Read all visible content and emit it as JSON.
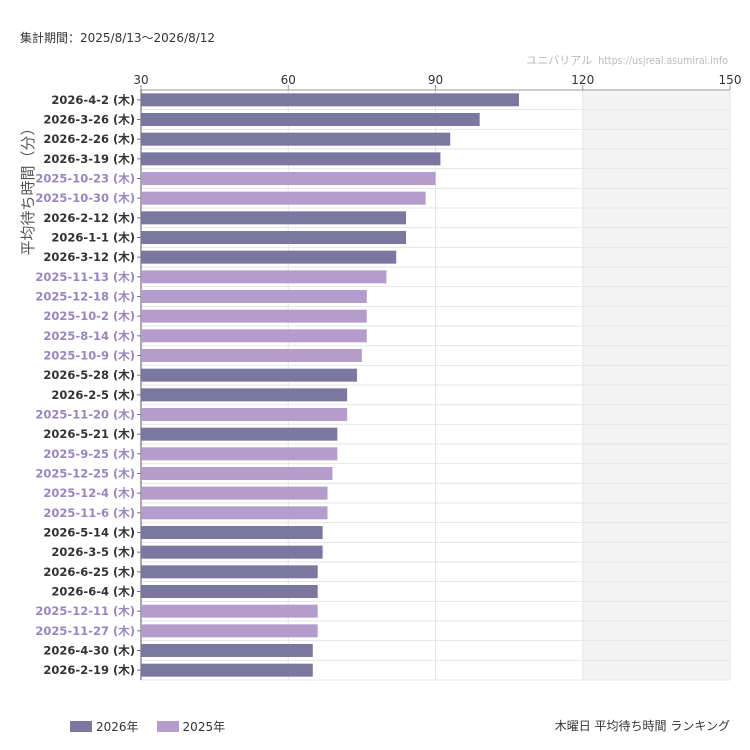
{
  "header": {
    "period": "集計期間：2025/8/13〜2026/8/12",
    "credit_site": "ユニバリアル",
    "credit_url": "https://usjreal.asumirai.info"
  },
  "caption": "木曜日 平均待ち時間 ランキング",
  "colors": {
    "2026": "#7b77a1",
    "2025": "#b49ccd",
    "label_2026": "#333333",
    "label_2025": "#9a86bd",
    "shade": "#f4f4f4",
    "grid": "#e6e6e6"
  },
  "chart_data": {
    "type": "bar",
    "orientation": "horizontal",
    "ylabel": "平均待ち時間（分）",
    "xlim": [
      30,
      150
    ],
    "ticks": [
      30,
      60,
      90,
      120,
      150
    ],
    "shaded_range": [
      120,
      150
    ],
    "grid": true,
    "legend_position": "bottom-left",
    "series": [
      {
        "name": "2026年",
        "key": "2026"
      },
      {
        "name": "2025年",
        "key": "2025"
      }
    ],
    "categories": [
      "2026-4-2 (木)",
      "2026-3-26 (木)",
      "2026-2-26 (木)",
      "2026-3-19 (木)",
      "2025-10-23 (木)",
      "2025-10-30 (木)",
      "2026-2-12 (木)",
      "2026-1-1 (木)",
      "2026-3-12 (木)",
      "2025-11-13 (木)",
      "2025-12-18 (木)",
      "2025-10-2 (木)",
      "2025-8-14 (木)",
      "2025-10-9 (木)",
      "2026-5-28 (木)",
      "2026-2-5 (木)",
      "2025-11-20 (木)",
      "2026-5-21 (木)",
      "2025-9-25 (木)",
      "2025-12-25 (木)",
      "2025-12-4 (木)",
      "2025-11-6 (木)",
      "2026-5-14 (木)",
      "2026-3-5 (木)",
      "2026-6-25 (木)",
      "2026-6-4 (木)",
      "2025-12-11 (木)",
      "2025-11-27 (木)",
      "2026-4-30 (木)",
      "2026-2-19 (木)"
    ],
    "values": [
      107,
      99,
      93,
      91,
      90,
      88,
      84,
      84,
      82,
      80,
      76,
      76,
      76,
      75,
      74,
      72,
      72,
      70,
      70,
      69,
      68,
      68,
      67,
      67,
      66,
      66,
      66,
      66,
      65,
      65
    ],
    "groups": [
      "2026",
      "2026",
      "2026",
      "2026",
      "2025",
      "2025",
      "2026",
      "2026",
      "2026",
      "2025",
      "2025",
      "2025",
      "2025",
      "2025",
      "2026",
      "2026",
      "2025",
      "2026",
      "2025",
      "2025",
      "2025",
      "2025",
      "2026",
      "2026",
      "2026",
      "2026",
      "2025",
      "2025",
      "2026",
      "2026"
    ]
  }
}
